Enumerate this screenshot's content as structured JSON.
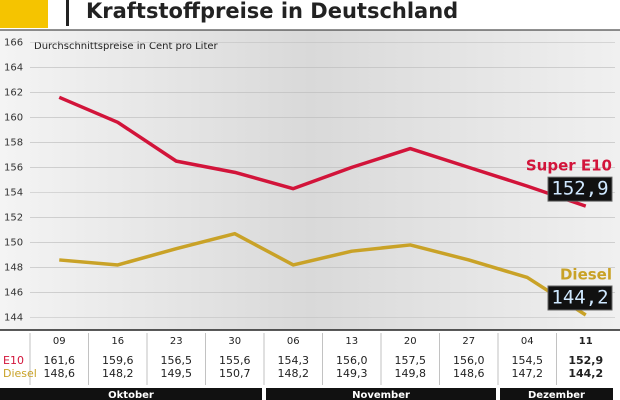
{
  "chart_data": {
    "type": "line",
    "title": "Kraftstoffpreise in Deutschland",
    "subtitle": "Durchschnittspreise in Cent pro Liter",
    "categories": [
      "09",
      "16",
      "23",
      "30",
      "06",
      "13",
      "20",
      "27",
      "04",
      "11"
    ],
    "months": [
      "Oktober",
      "November",
      "Dezember"
    ],
    "table_row_labels": [
      "E10",
      "Diesel"
    ],
    "series": [
      {
        "name": "Super E10",
        "color": "#d2143a",
        "values": [
          161.6,
          159.6,
          156.5,
          155.6,
          154.3,
          156.0,
          157.5,
          156.0,
          154.5,
          152.9
        ],
        "value_labels": [
          "161,6",
          "159,6",
          "156,5",
          "155,6",
          "154,3",
          "156,0",
          "157,5",
          "156,0",
          "154,5",
          "152,9"
        ]
      },
      {
        "name": "Diesel",
        "color": "#c9a227",
        "values": [
          148.6,
          148.2,
          149.5,
          150.7,
          148.2,
          149.3,
          149.8,
          148.6,
          147.2,
          144.2
        ],
        "value_labels": [
          "148,6",
          "148,2",
          "149,5",
          "150,7",
          "148,2",
          "149,3",
          "149,8",
          "148,6",
          "147,2",
          "144,2"
        ]
      }
    ],
    "ylim": [
      143,
      166.5
    ],
    "yticks": [
      144,
      146,
      148,
      150,
      152,
      154,
      156,
      158,
      160,
      162,
      164,
      166
    ],
    "grid": true
  }
}
